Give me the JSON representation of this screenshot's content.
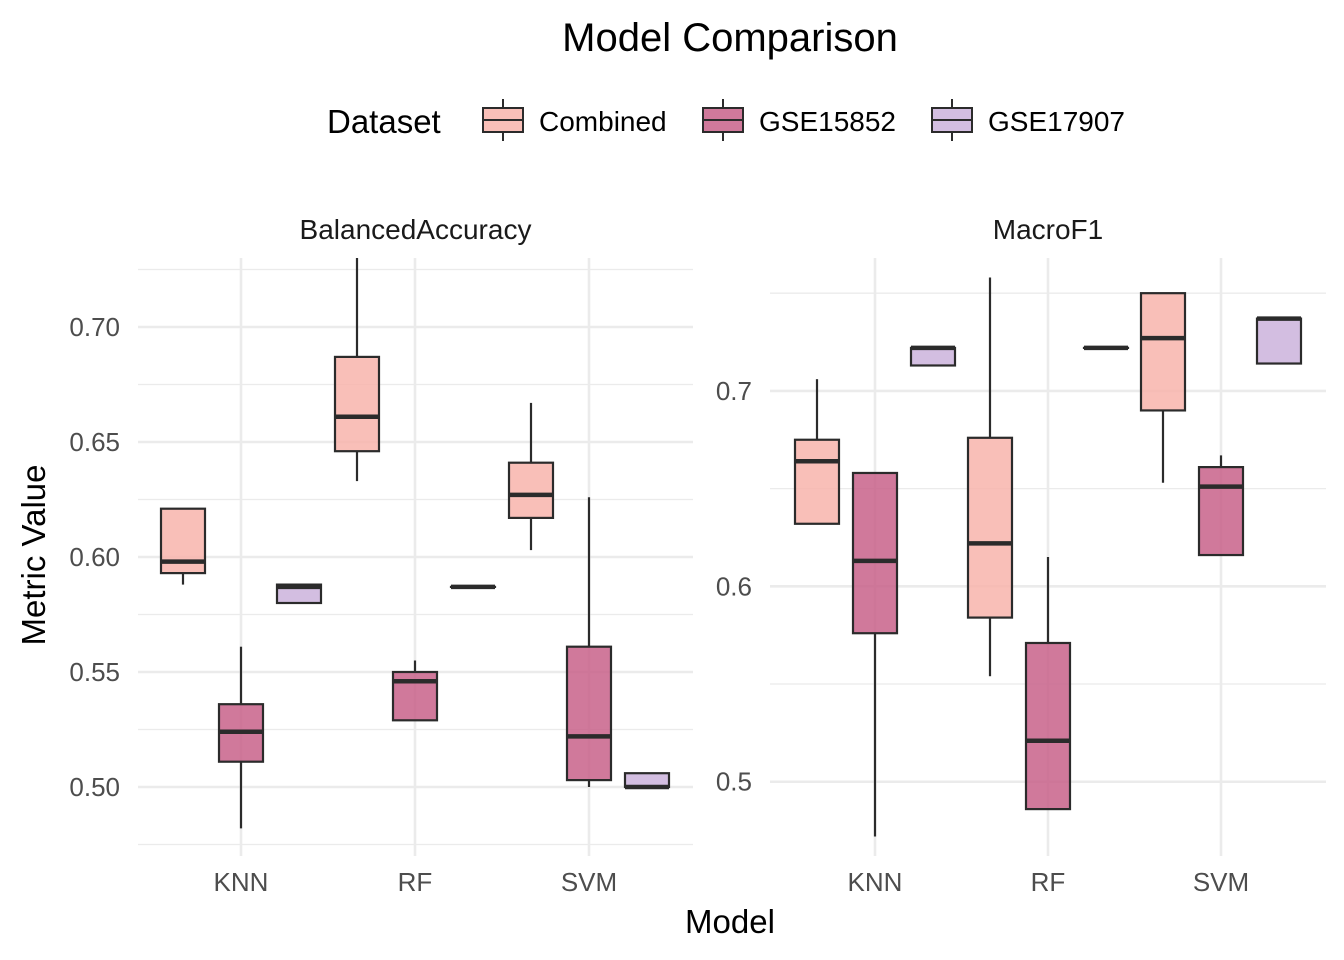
{
  "chart_data": {
    "type": "boxplot",
    "title": "Model Comparison",
    "xlabel": "Model",
    "ylabel": "Metric Value",
    "legend": {
      "title": "Dataset",
      "placement": "top",
      "entries": [
        "Combined",
        "GSE15852",
        "GSE17907"
      ]
    },
    "colors": {
      "Combined": "#F8B4AB",
      "GSE15852": "#C8628A",
      "GSE17907": "#CBB3DC",
      "box_stroke": "#2b2b2b",
      "grid": "#EBEBEB",
      "text": "#000000",
      "tick_text": "#4d4d4d"
    },
    "categories": [
      "KNN",
      "RF",
      "SVM"
    ],
    "panels": [
      {
        "name": "BalancedAccuracy",
        "ylim": [
          0.47,
          0.73
        ],
        "yticks": [
          0.5,
          0.55,
          0.6,
          0.65,
          0.7
        ],
        "ytick_labels": [
          "0.50",
          "0.55",
          "0.60",
          "0.65",
          "0.70"
        ],
        "boxes": [
          {
            "category": "KNN",
            "dataset": "Combined",
            "min": 0.588,
            "q1": 0.593,
            "median": 0.598,
            "q3": 0.621,
            "max": 0.621
          },
          {
            "category": "KNN",
            "dataset": "GSE15852",
            "min": 0.482,
            "q1": 0.511,
            "median": 0.524,
            "q3": 0.536,
            "max": 0.561
          },
          {
            "category": "KNN",
            "dataset": "GSE17907",
            "min": 0.58,
            "q1": 0.58,
            "median": 0.587,
            "q3": 0.588,
            "max": 0.588
          },
          {
            "category": "RF",
            "dataset": "Combined",
            "min": 0.633,
            "q1": 0.646,
            "median": 0.661,
            "q3": 0.687,
            "max": 0.73
          },
          {
            "category": "RF",
            "dataset": "GSE15852",
            "min": 0.529,
            "q1": 0.529,
            "median": 0.546,
            "q3": 0.55,
            "max": 0.555
          },
          {
            "category": "RF",
            "dataset": "GSE17907",
            "min": 0.587,
            "q1": 0.587,
            "median": 0.587,
            "q3": 0.587,
            "max": 0.587
          },
          {
            "category": "SVM",
            "dataset": "Combined",
            "min": 0.603,
            "q1": 0.617,
            "median": 0.627,
            "q3": 0.641,
            "max": 0.667
          },
          {
            "category": "SVM",
            "dataset": "GSE15852",
            "min": 0.5,
            "q1": 0.503,
            "median": 0.522,
            "q3": 0.561,
            "max": 0.626
          },
          {
            "category": "SVM",
            "dataset": "GSE17907",
            "min": 0.5,
            "q1": 0.5,
            "median": 0.5,
            "q3": 0.506,
            "max": 0.506
          }
        ]
      },
      {
        "name": "MacroF1",
        "ylim": [
          0.462,
          0.768
        ],
        "yticks": [
          0.5,
          0.6,
          0.7
        ],
        "ytick_labels": [
          "0.5",
          "0.6",
          "0.7"
        ],
        "boxes": [
          {
            "category": "KNN",
            "dataset": "Combined",
            "min": 0.632,
            "q1": 0.632,
            "median": 0.664,
            "q3": 0.675,
            "max": 0.706
          },
          {
            "category": "KNN",
            "dataset": "GSE15852",
            "min": 0.472,
            "q1": 0.576,
            "median": 0.613,
            "q3": 0.658,
            "max": 0.658
          },
          {
            "category": "KNN",
            "dataset": "GSE17907",
            "min": 0.713,
            "q1": 0.713,
            "median": 0.722,
            "q3": 0.722,
            "max": 0.722
          },
          {
            "category": "RF",
            "dataset": "Combined",
            "min": 0.554,
            "q1": 0.584,
            "median": 0.622,
            "q3": 0.676,
            "max": 0.758
          },
          {
            "category": "RF",
            "dataset": "GSE15852",
            "min": 0.486,
            "q1": 0.486,
            "median": 0.521,
            "q3": 0.571,
            "max": 0.615
          },
          {
            "category": "RF",
            "dataset": "GSE17907",
            "min": 0.722,
            "q1": 0.722,
            "median": 0.722,
            "q3": 0.722,
            "max": 0.722
          },
          {
            "category": "SVM",
            "dataset": "Combined",
            "min": 0.653,
            "q1": 0.69,
            "median": 0.727,
            "q3": 0.75,
            "max": 0.75
          },
          {
            "category": "SVM",
            "dataset": "GSE15852",
            "min": 0.616,
            "q1": 0.616,
            "median": 0.651,
            "q3": 0.661,
            "max": 0.667
          },
          {
            "category": "SVM",
            "dataset": "GSE17907",
            "min": 0.714,
            "q1": 0.714,
            "median": 0.737,
            "q3": 0.737,
            "max": 0.737
          }
        ]
      }
    ]
  }
}
